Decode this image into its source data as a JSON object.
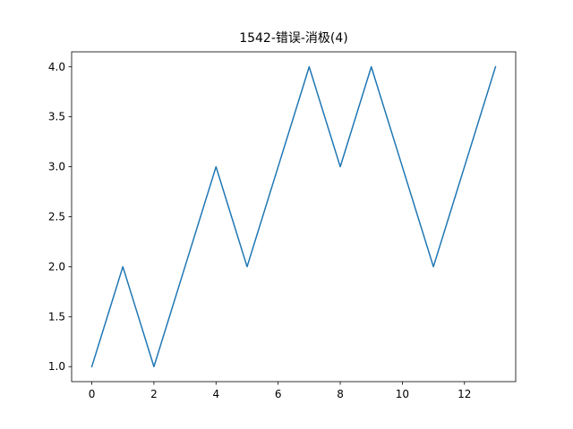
{
  "chart_data": {
    "type": "line",
    "title": "1542-错误-消极(4)",
    "xlabel": "",
    "ylabel": "",
    "x": [
      0,
      1,
      2,
      3,
      4,
      5,
      6,
      7,
      8,
      9,
      10,
      11,
      12,
      13
    ],
    "series": [
      {
        "values": [
          1.0,
          2.0,
          1.0,
          2.0,
          3.0,
          2.0,
          3.0,
          4.0,
          3.0,
          4.0,
          3.0,
          2.0,
          3.0,
          4.0
        ],
        "color": "#1f77b4"
      }
    ],
    "xlim": [
      -0.65,
      13.65
    ],
    "ylim": [
      0.85,
      4.15
    ],
    "xticks": [
      0,
      2,
      4,
      6,
      8,
      10,
      12
    ],
    "xtick_labels": [
      "0",
      "2",
      "4",
      "6",
      "8",
      "10",
      "12"
    ],
    "yticks": [
      1.0,
      1.5,
      2.0,
      2.5,
      3.0,
      3.5,
      4.0
    ],
    "ytick_labels": [
      "1.0",
      "1.5",
      "2.0",
      "2.5",
      "3.0",
      "3.5",
      "4.0"
    ],
    "grid": false,
    "legend": "none"
  }
}
